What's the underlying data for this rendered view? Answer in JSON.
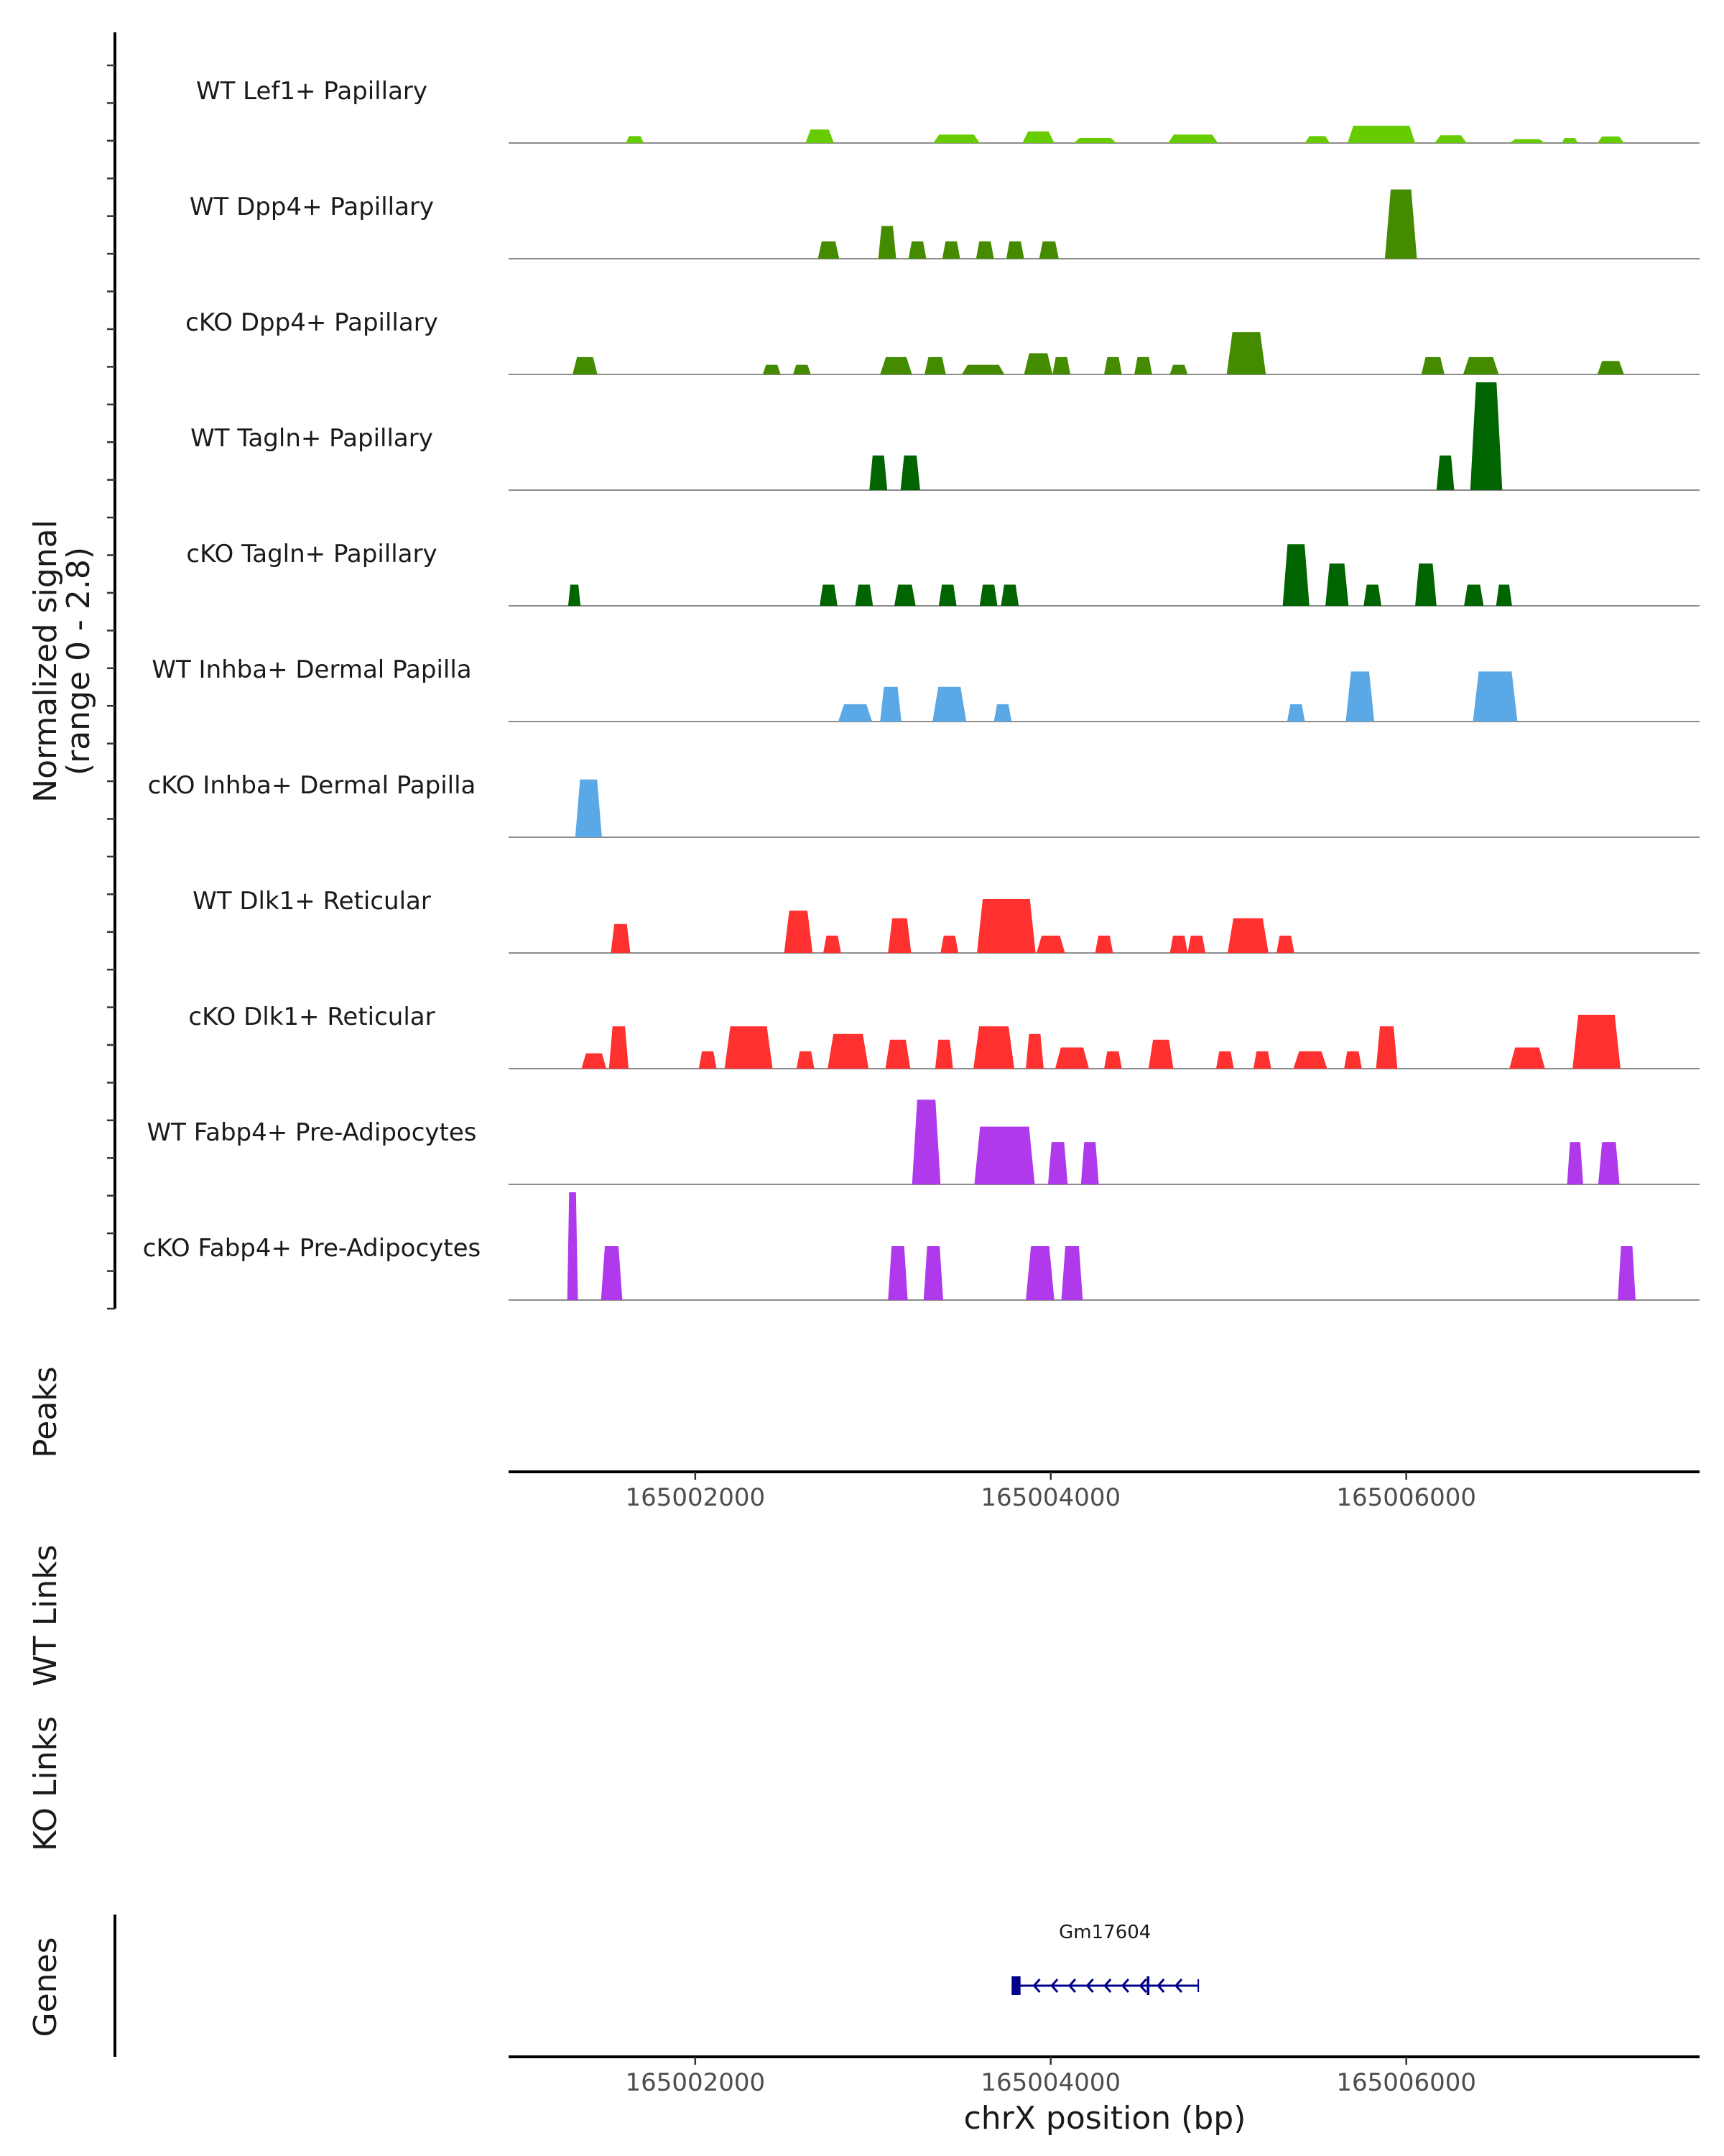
{
  "chart_data": {
    "type": "area",
    "title": "",
    "ylabel": "Normalized signal",
    "ylabel_sub": "(range 0 - 2.8)",
    "ylim": [
      0,
      2.8
    ],
    "xlabel": "chrX position (bp)",
    "chromosome": "chrX",
    "xlim": [
      165000950,
      165007650
    ],
    "xticks": [
      165002000,
      165004000,
      165006000
    ],
    "xtick_labels": [
      "165002000",
      "165004000",
      "165006000"
    ],
    "tracks": [
      {
        "name": "WT Lef1+ Papillary",
        "color": "#66cc00",
        "peaks": [
          [
            165001660,
            100,
            0.18
          ],
          [
            165002700,
            160,
            0.35
          ],
          [
            165003470,
            260,
            0.22
          ],
          [
            165003930,
            180,
            0.3
          ],
          [
            165004250,
            240,
            0.13
          ],
          [
            165004800,
            280,
            0.22
          ],
          [
            165005500,
            140,
            0.18
          ],
          [
            165005860,
            380,
            0.45
          ],
          [
            165006250,
            180,
            0.2
          ],
          [
            165006680,
            200,
            0.1
          ],
          [
            165006920,
            90,
            0.13
          ],
          [
            165007150,
            150,
            0.17
          ]
        ]
      },
      {
        "name": "WT Dpp4+ Papillary",
        "color": "#458b00",
        "peaks": [
          [
            165002750,
            120,
            0.45
          ],
          [
            165003080,
            100,
            0.85
          ],
          [
            165003250,
            100,
            0.45
          ],
          [
            165003440,
            100,
            0.45
          ],
          [
            165003630,
            100,
            0.45
          ],
          [
            165003800,
            100,
            0.45
          ],
          [
            165003990,
            110,
            0.45
          ],
          [
            165005970,
            180,
            1.8
          ]
        ]
      },
      {
        "name": "cKO Dpp4+ Papillary",
        "color": "#458b00",
        "peaks": [
          [
            165001380,
            140,
            0.45
          ],
          [
            165002430,
            100,
            0.25
          ],
          [
            165002600,
            100,
            0.25
          ],
          [
            165003130,
            180,
            0.45
          ],
          [
            165003350,
            120,
            0.45
          ],
          [
            165003620,
            240,
            0.25
          ],
          [
            165003930,
            160,
            0.55
          ],
          [
            165004060,
            100,
            0.45
          ],
          [
            165004350,
            100,
            0.45
          ],
          [
            165004520,
            100,
            0.45
          ],
          [
            165004720,
            100,
            0.25
          ],
          [
            165005100,
            220,
            1.1
          ],
          [
            165006150,
            130,
            0.45
          ],
          [
            165006420,
            200,
            0.45
          ],
          [
            165007150,
            150,
            0.35
          ]
        ]
      },
      {
        "name": "WT Tagln+ Papillary",
        "color": "#006400",
        "peaks": [
          [
            165003030,
            100,
            0.9
          ],
          [
            165003210,
            110,
            0.9
          ],
          [
            165006220,
            100,
            0.9
          ],
          [
            165006450,
            180,
            2.8
          ]
        ]
      },
      {
        "name": "cKO Tagln+ Papillary",
        "color": "#006400",
        "peaks": [
          [
            165001320,
            70,
            0.55
          ],
          [
            165002750,
            100,
            0.55
          ],
          [
            165002950,
            100,
            0.55
          ],
          [
            165003180,
            120,
            0.55
          ],
          [
            165003420,
            100,
            0.55
          ],
          [
            165003650,
            100,
            0.55
          ],
          [
            165003770,
            100,
            0.55
          ],
          [
            165005380,
            150,
            1.6
          ],
          [
            165005610,
            130,
            1.1
          ],
          [
            165005810,
            100,
            0.55
          ],
          [
            165006110,
            120,
            1.1
          ],
          [
            165006380,
            110,
            0.55
          ],
          [
            165006550,
            90,
            0.55
          ]
        ]
      },
      {
        "name": "WT Inhba+ Dermal Papilla",
        "color": "#5aa9e6",
        "peaks": [
          [
            165002900,
            190,
            0.45
          ],
          [
            165003100,
            120,
            0.9
          ],
          [
            165003430,
            190,
            0.9
          ],
          [
            165003730,
            100,
            0.45
          ],
          [
            165005380,
            100,
            0.45
          ],
          [
            165005740,
            160,
            1.3
          ],
          [
            165006500,
            250,
            1.3
          ]
        ]
      },
      {
        "name": "cKO Inhba+ Dermal Papilla",
        "color": "#5aa9e6",
        "peaks": [
          [
            165001400,
            150,
            1.5
          ]
        ]
      },
      {
        "name": "WT Dlk1+ Reticular",
        "color": "#ff3030",
        "peaks": [
          [
            165001580,
            110,
            0.75
          ],
          [
            165002580,
            160,
            1.1
          ],
          [
            165002770,
            100,
            0.45
          ],
          [
            165003150,
            130,
            0.9
          ],
          [
            165003430,
            100,
            0.45
          ],
          [
            165003750,
            330,
            1.4
          ],
          [
            165004000,
            160,
            0.45
          ],
          [
            165004300,
            100,
            0.45
          ],
          [
            165004720,
            100,
            0.45
          ],
          [
            165004820,
            100,
            0.45
          ],
          [
            165005110,
            230,
            0.9
          ],
          [
            165005320,
            100,
            0.45
          ]
        ]
      },
      {
        "name": "cKO Dlk1+ Reticular",
        "color": "#ff3030",
        "peaks": [
          [
            165001430,
            140,
            0.4
          ],
          [
            165001570,
            110,
            1.1
          ],
          [
            165002070,
            100,
            0.45
          ],
          [
            165002300,
            270,
            1.1
          ],
          [
            165002620,
            100,
            0.45
          ],
          [
            165002860,
            230,
            0.9
          ],
          [
            165003140,
            140,
            0.75
          ],
          [
            165003400,
            100,
            0.75
          ],
          [
            165003680,
            230,
            1.1
          ],
          [
            165003910,
            100,
            0.9
          ],
          [
            165004120,
            190,
            0.55
          ],
          [
            165004350,
            100,
            0.45
          ],
          [
            165004620,
            140,
            0.75
          ],
          [
            165004980,
            100,
            0.45
          ],
          [
            165005190,
            100,
            0.45
          ],
          [
            165005460,
            190,
            0.45
          ],
          [
            165005700,
            100,
            0.45
          ],
          [
            165005890,
            120,
            1.1
          ],
          [
            165006680,
            200,
            0.55
          ],
          [
            165007070,
            270,
            1.4
          ]
        ]
      },
      {
        "name": "WT Fabp4+ Pre-Adipocytes",
        "color": "#b039ec",
        "peaks": [
          [
            165003300,
            160,
            2.2
          ],
          [
            165003740,
            340,
            1.5
          ],
          [
            165004040,
            110,
            1.1
          ],
          [
            165004220,
            100,
            1.1
          ],
          [
            165006950,
            90,
            1.1
          ],
          [
            165007140,
            120,
            1.1
          ]
        ]
      },
      {
        "name": "cKO Fabp4+ Pre-Adipocytes",
        "color": "#b039ec",
        "peaks": [
          [
            165001310,
            60,
            2.8
          ],
          [
            165001530,
            120,
            1.4
          ],
          [
            165003140,
            110,
            1.4
          ],
          [
            165003340,
            110,
            1.4
          ],
          [
            165003940,
            160,
            1.4
          ],
          [
            165004120,
            120,
            1.4
          ],
          [
            165007240,
            100,
            1.4
          ]
        ]
      }
    ],
    "panels": {
      "peaks": "Peaks",
      "wt_links": "WT Links",
      "ko_links": "KO Links",
      "genes": "Genes"
    },
    "gene": {
      "name": "Gm17604",
      "start": 165003780,
      "end": 165004830,
      "strand": "-",
      "exons": [
        [
          165003780,
          165003830
        ],
        [
          165004540,
          165004555
        ]
      ],
      "color": "#00008b"
    }
  }
}
